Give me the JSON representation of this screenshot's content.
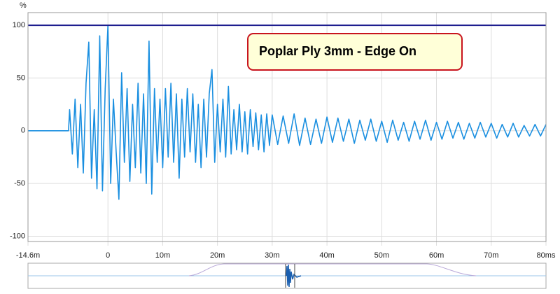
{
  "chart_data": {
    "type": "line",
    "ylabel": "%",
    "annotation": "Poplar Ply 3mm - Edge On",
    "xlim": [
      -14.6,
      80
    ],
    "ylim": [
      -105,
      112
    ],
    "xticks": [
      {
        "value": -14.6,
        "label": "-14.6m"
      },
      0,
      {
        "value": 10,
        "label": "10m"
      },
      {
        "value": 20,
        "label": "20m"
      },
      {
        "value": 30,
        "label": "30m"
      },
      {
        "value": 40,
        "label": "40m"
      },
      {
        "value": 50,
        "label": "50m"
      },
      {
        "value": 60,
        "label": "60m"
      },
      {
        "value": 70,
        "label": "70m"
      },
      {
        "value": 80,
        "label": "80ms"
      }
    ],
    "yticks": [
      100,
      50,
      0,
      -50,
      -100
    ],
    "grid": true,
    "hline": {
      "value": 100,
      "color": "#1c1c8e"
    },
    "x": [
      -14.6,
      -7.2,
      -7,
      -6.5,
      -6,
      -5.5,
      -5,
      -4.5,
      -4,
      -3.5,
      -3,
      -2.5,
      -2,
      -1.5,
      -1,
      -0.5,
      0,
      0.5,
      1,
      1.5,
      2,
      2.5,
      3,
      3.5,
      4,
      4.5,
      5,
      5.5,
      6,
      6.5,
      7,
      7.5,
      8,
      8.5,
      9,
      9.5,
      10,
      10.5,
      11,
      11.5,
      12,
      12.5,
      13,
      13.5,
      14,
      14.5,
      15,
      15.5,
      16,
      16.5,
      17,
      17.5,
      18,
      18.5,
      19,
      19.5,
      20,
      20.5,
      21,
      21.5,
      22,
      22.5,
      23,
      23.5,
      24,
      24.5,
      25,
      25.5,
      26,
      26.5,
      27,
      27.5,
      28,
      28.5,
      29,
      29.5,
      30,
      31,
      32,
      33,
      34,
      35,
      36,
      37,
      38,
      39,
      40,
      41,
      42,
      43,
      44,
      45,
      46,
      47,
      48,
      49,
      50,
      51,
      52,
      53,
      54,
      55,
      56,
      57,
      58,
      59,
      60,
      61,
      62,
      63,
      64,
      65,
      66,
      67,
      68,
      69,
      70,
      71,
      72,
      73,
      74,
      75,
      76,
      77,
      78,
      79,
      80
    ],
    "series": [
      {
        "color": "#1a8fe0",
        "values": [
          0,
          0,
          20,
          -22,
          30,
          -35,
          25,
          -40,
          45,
          84,
          -45,
          20,
          -55,
          90,
          -57,
          40,
          100,
          -50,
          30,
          -20,
          -65,
          55,
          -30,
          40,
          -48,
          25,
          -35,
          45,
          -40,
          35,
          -50,
          85,
          -60,
          40,
          -30,
          30,
          -35,
          40,
          -25,
          45,
          -30,
          35,
          -45,
          30,
          -25,
          40,
          -20,
          35,
          -30,
          25,
          -35,
          30,
          -25,
          35,
          58,
          -30,
          25,
          -20,
          30,
          -25,
          42,
          -22,
          20,
          -18,
          25,
          -20,
          18,
          -22,
          20,
          -15,
          17,
          -18,
          15,
          -20,
          16,
          -14,
          15,
          -13,
          14,
          -12,
          16,
          -14,
          12,
          -13,
          11,
          -12,
          13,
          -11,
          12,
          -10,
          11,
          -12,
          10,
          -9,
          11,
          -10,
          9,
          -11,
          10,
          -9,
          8,
          -10,
          9,
          -8,
          10,
          -9,
          8,
          -8,
          9,
          -7,
          8,
          -8,
          7,
          -7,
          8,
          -6,
          7,
          -7,
          6,
          -6,
          7,
          -6,
          5,
          -5,
          6,
          -5,
          6
        ]
      }
    ]
  }
}
